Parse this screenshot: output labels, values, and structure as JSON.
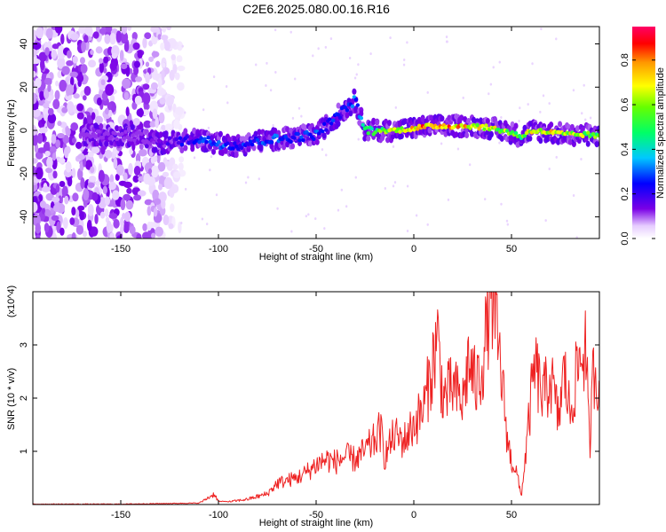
{
  "title": "C2E6.2025.080.00.16.R16",
  "colors": {
    "snr_line": "#ee2222",
    "background": "#ffffff",
    "axes": "#000000"
  },
  "chart_data": [
    {
      "type": "heatmap",
      "xlabel": "Height of straight line (km)",
      "ylabel": "Frequency (Hz)",
      "xlim": [
        -195,
        95
      ],
      "ylim": [
        -50,
        48
      ],
      "xticks": [
        -150,
        -100,
        -50,
        0,
        50
      ],
      "yticks": [
        -40,
        -20,
        0,
        20,
        40
      ],
      "colorbar": {
        "label": "Normalized spectral amplitude",
        "range": [
          0,
          0.95
        ],
        "ticks": [
          0.0,
          0.2,
          0.4,
          0.6,
          0.8
        ],
        "colormap": "rainbow-violet-to-red"
      },
      "ridge": {
        "x": [
          -160,
          -140,
          -130,
          -120,
          -110,
          -100,
          -90,
          -80,
          -70,
          -60,
          -50,
          -45,
          -40,
          -35,
          -30,
          -25,
          -20,
          -10,
          0,
          10,
          20,
          30,
          40,
          50,
          55,
          60,
          70,
          80,
          90,
          95
        ],
        "y": [
          -2,
          -3,
          -6,
          -5,
          -4,
          -6,
          -7,
          -5,
          -4,
          -3,
          -2,
          2,
          6,
          10,
          14,
          0,
          0,
          0,
          1,
          2,
          2,
          2,
          1,
          -1,
          -3,
          0,
          -1,
          -2,
          -2,
          -3
        ],
        "amplitude": [
          0.1,
          0.12,
          0.15,
          0.25,
          0.3,
          0.35,
          0.3,
          0.3,
          0.35,
          0.3,
          0.35,
          0.3,
          0.3,
          0.3,
          0.35,
          0.5,
          0.6,
          0.75,
          0.9,
          0.95,
          0.9,
          0.85,
          0.75,
          0.7,
          0.6,
          0.85,
          0.8,
          0.75,
          0.7,
          0.6
        ]
      },
      "noise_region": {
        "x_range": [
          -195,
          -125
        ]
      }
    },
    {
      "type": "line",
      "xlabel": "Height of straight line (km)",
      "ylabel": "SNR (10 * v/v)",
      "multiplier": "(x10^4)",
      "xlim": [
        -195,
        95
      ],
      "ylim": [
        0,
        4.0
      ],
      "xticks": [
        -150,
        -100,
        -50,
        0,
        50
      ],
      "yticks": [
        1,
        2,
        3
      ],
      "series": [
        {
          "x": [
            -195,
            -150,
            -110,
            -102,
            -100,
            -95,
            -85,
            -75,
            -70,
            -65,
            -60,
            -55,
            -50,
            -45,
            -40,
            -35,
            -30,
            -25,
            -20,
            -17,
            -15,
            -10,
            -5,
            0,
            5,
            10,
            12,
            15,
            20,
            25,
            28,
            32,
            36,
            38,
            40,
            42,
            45,
            48,
            50,
            52,
            55,
            58,
            60,
            62,
            66,
            70,
            74,
            77,
            80,
            84,
            88,
            90,
            92,
            95
          ],
          "y": [
            0.0,
            0.0,
            0.02,
            0.2,
            0.05,
            0.05,
            0.1,
            0.2,
            0.4,
            0.45,
            0.5,
            0.6,
            0.75,
            0.85,
            0.8,
            0.9,
            0.85,
            1.0,
            1.2,
            1.4,
            0.9,
            1.3,
            1.2,
            1.5,
            1.8,
            2.7,
            3.2,
            2.0,
            2.2,
            1.9,
            2.7,
            2.2,
            2.8,
            3.6,
            4.0,
            3.3,
            2.4,
            1.2,
            0.8,
            0.7,
            0.15,
            1.2,
            2.0,
            2.6,
            2.0,
            2.4,
            1.6,
            2.5,
            1.7,
            2.6,
            3.0,
            1.0,
            2.6,
            2.3
          ]
        }
      ]
    }
  ]
}
